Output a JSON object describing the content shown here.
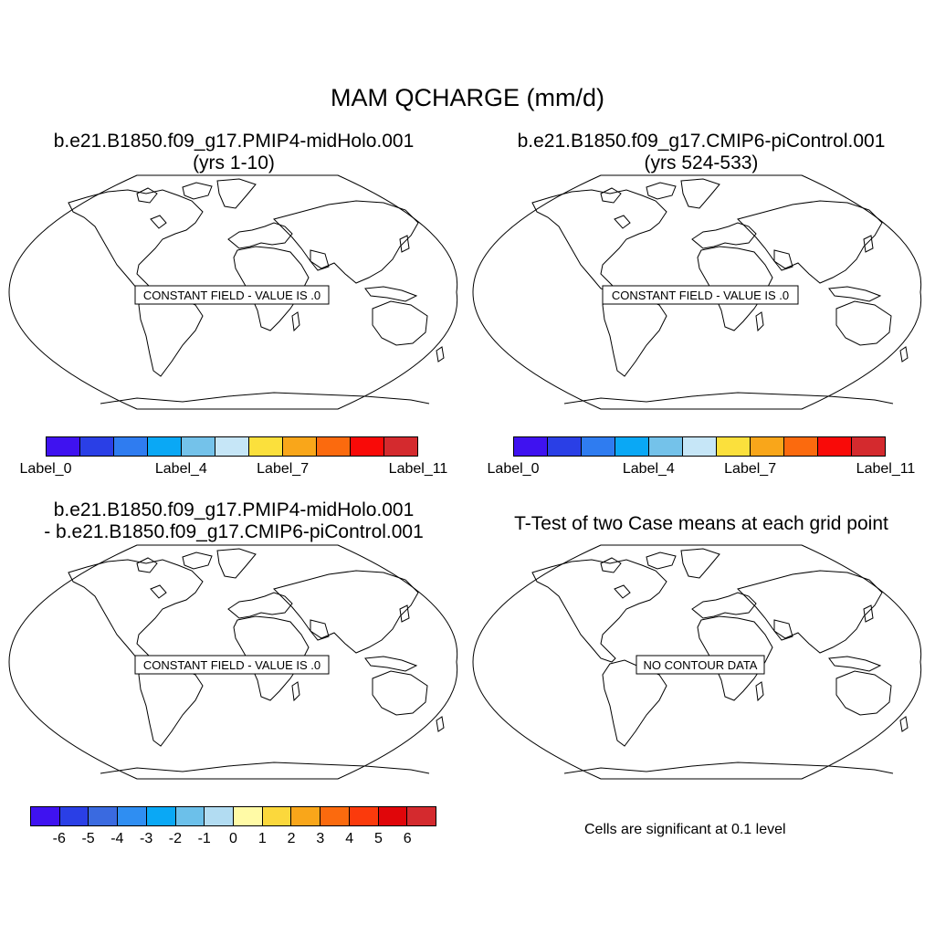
{
  "title": "MAM QCHARGE (mm/d)",
  "panels": {
    "top_left": {
      "line1": "b.e21.B1850.f09_g17.PMIP4-midHolo.001",
      "line2": "(yrs 1-10)",
      "overlay": "CONSTANT FIELD - VALUE IS .0"
    },
    "top_right": {
      "line1": "b.e21.B1850.f09_g17.CMIP6-piControl.001",
      "line2": "(yrs 524-533)",
      "overlay": "CONSTANT FIELD - VALUE IS .0"
    },
    "bottom_left": {
      "line1": "b.e21.B1850.f09_g17.PMIP4-midHolo.001",
      "line2": "- b.e21.B1850.f09_g17.CMIP6-piControl.001",
      "overlay": "CONSTANT FIELD - VALUE IS .0"
    },
    "bottom_right": {
      "line1": "T-Test of two Case means at each grid point",
      "overlay": "NO CONTOUR DATA",
      "note": "Cells are significant at 0.1 level"
    }
  },
  "colorbar_case": {
    "colors": [
      "#3f12f0",
      "#2a3fe6",
      "#2f7cf0",
      "#0aa8f5",
      "#74c2ea",
      "#c6e6f7",
      "#fbe03c",
      "#f9a61a",
      "#fb6a0e",
      "#f90a08",
      "#d42a2e"
    ],
    "labels": [
      "Label_0",
      "Label_4",
      "Label_7",
      "Label_11"
    ]
  },
  "colorbar_diff": {
    "colors": [
      "#3f12f0",
      "#2a3fe6",
      "#3a6ae0",
      "#2f8ef2",
      "#0aa8f5",
      "#6cc0ea",
      "#b2dcf2",
      "#fffaa6",
      "#fbd83c",
      "#f9a61a",
      "#fb6a0e",
      "#fb3a0c",
      "#e0060a",
      "#d42a2e"
    ],
    "labels": [
      "-6",
      "-5",
      "-4",
      "-3",
      "-2",
      "-1",
      "0",
      "1",
      "2",
      "3",
      "4",
      "5",
      "6"
    ]
  }
}
